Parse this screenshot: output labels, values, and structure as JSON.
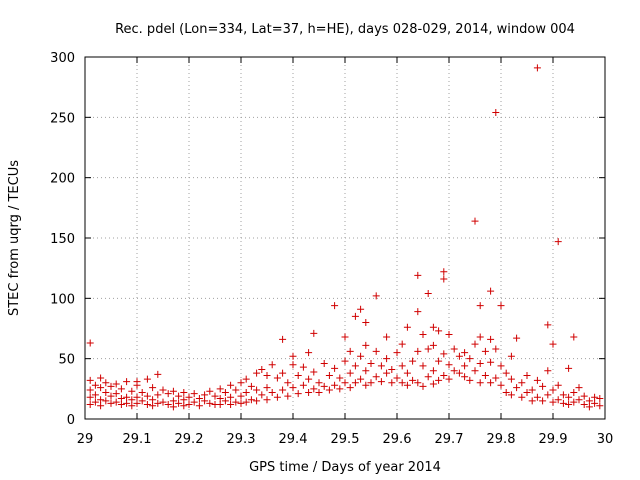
{
  "chart_data": {
    "type": "scatter",
    "title": "Rec. pdel (Lon=334, Lat=37, h=HE), days 028-029, 2014, window 004",
    "xlabel": "GPS time / Days of year 2014",
    "ylabel": "STEC from uqrg / TECUs",
    "xlim": [
      29,
      30
    ],
    "ylim": [
      0,
      300
    ],
    "xticks": [
      "29",
      "29.1",
      "29.2",
      "29.3",
      "29.4",
      "29.5",
      "29.6",
      "29.7",
      "29.8",
      "29.9",
      "30"
    ],
    "yticks": [
      "0",
      "50",
      "100",
      "150",
      "200",
      "250",
      "300"
    ],
    "grid": true,
    "marker": "+",
    "color": "#d00000",
    "series": [
      {
        "name": "STEC",
        "points": [
          [
            29.01,
            63
          ],
          [
            29.01,
            32
          ],
          [
            29.01,
            24
          ],
          [
            29.01,
            18
          ],
          [
            29.01,
            12
          ],
          [
            29.02,
            28
          ],
          [
            29.02,
            20
          ],
          [
            29.02,
            14
          ],
          [
            29.03,
            34
          ],
          [
            29.03,
            26
          ],
          [
            29.03,
            16
          ],
          [
            29.03,
            11
          ],
          [
            29.04,
            30
          ],
          [
            29.04,
            22
          ],
          [
            29.04,
            15
          ],
          [
            29.05,
            27
          ],
          [
            29.05,
            19
          ],
          [
            29.05,
            13
          ],
          [
            29.06,
            29
          ],
          [
            29.06,
            21
          ],
          [
            29.06,
            14
          ],
          [
            29.07,
            25
          ],
          [
            29.07,
            17
          ],
          [
            29.07,
            12
          ],
          [
            29.08,
            31
          ],
          [
            29.08,
            18
          ],
          [
            29.08,
            13
          ],
          [
            29.09,
            23
          ],
          [
            29.09,
            16
          ],
          [
            29.09,
            11
          ],
          [
            29.1,
            31
          ],
          [
            29.1,
            28
          ],
          [
            29.1,
            18
          ],
          [
            29.1,
            13
          ],
          [
            29.11,
            22
          ],
          [
            29.11,
            15
          ],
          [
            29.12,
            33
          ],
          [
            29.12,
            19
          ],
          [
            29.12,
            12
          ],
          [
            29.13,
            26
          ],
          [
            29.13,
            16
          ],
          [
            29.13,
            11
          ],
          [
            29.14,
            37
          ],
          [
            29.14,
            20
          ],
          [
            29.14,
            13
          ],
          [
            29.15,
            24
          ],
          [
            29.15,
            14
          ],
          [
            29.16,
            21
          ],
          [
            29.16,
            12
          ],
          [
            29.17,
            23
          ],
          [
            29.17,
            15
          ],
          [
            29.17,
            10
          ],
          [
            29.18,
            19
          ],
          [
            29.18,
            13
          ],
          [
            29.19,
            22
          ],
          [
            29.19,
            16
          ],
          [
            29.19,
            11
          ],
          [
            29.2,
            18
          ],
          [
            29.2,
            12
          ],
          [
            29.21,
            21
          ],
          [
            29.21,
            14
          ],
          [
            29.22,
            17
          ],
          [
            29.22,
            11
          ],
          [
            29.23,
            20
          ],
          [
            29.23,
            15
          ],
          [
            29.24,
            23
          ],
          [
            29.24,
            13
          ],
          [
            29.25,
            19
          ],
          [
            29.25,
            12
          ],
          [
            29.26,
            25
          ],
          [
            29.26,
            17
          ],
          [
            29.26,
            12
          ],
          [
            29.27,
            22
          ],
          [
            29.27,
            15
          ],
          [
            29.28,
            28
          ],
          [
            29.28,
            18
          ],
          [
            29.28,
            12
          ],
          [
            29.29,
            24
          ],
          [
            29.29,
            14
          ],
          [
            29.3,
            30
          ],
          [
            29.3,
            19
          ],
          [
            29.3,
            13
          ],
          [
            29.31,
            33
          ],
          [
            29.31,
            22
          ],
          [
            29.31,
            14
          ],
          [
            29.32,
            27
          ],
          [
            29.32,
            16
          ],
          [
            29.33,
            38
          ],
          [
            29.33,
            24
          ],
          [
            29.33,
            15
          ],
          [
            29.34,
            41
          ],
          [
            29.34,
            20
          ],
          [
            29.35,
            36
          ],
          [
            29.35,
            26
          ],
          [
            29.35,
            16
          ],
          [
            29.36,
            45
          ],
          [
            29.36,
            22
          ],
          [
            29.37,
            34
          ],
          [
            29.37,
            18
          ],
          [
            29.38,
            66
          ],
          [
            29.38,
            38
          ],
          [
            29.38,
            24
          ],
          [
            29.39,
            30
          ],
          [
            29.39,
            19
          ],
          [
            29.4,
            52
          ],
          [
            29.4,
            45
          ],
          [
            29.4,
            26
          ],
          [
            29.41,
            36
          ],
          [
            29.41,
            21
          ],
          [
            29.42,
            43
          ],
          [
            29.42,
            28
          ],
          [
            29.43,
            55
          ],
          [
            29.43,
            33
          ],
          [
            29.43,
            22
          ],
          [
            29.44,
            71
          ],
          [
            29.44,
            39
          ],
          [
            29.44,
            25
          ],
          [
            29.45,
            30
          ],
          [
            29.45,
            22
          ],
          [
            29.46,
            46
          ],
          [
            29.46,
            27
          ],
          [
            29.47,
            36
          ],
          [
            29.47,
            24
          ],
          [
            29.48,
            94
          ],
          [
            29.48,
            42
          ],
          [
            29.48,
            28
          ],
          [
            29.49,
            34
          ],
          [
            29.49,
            25
          ],
          [
            29.5,
            68
          ],
          [
            29.5,
            48
          ],
          [
            29.5,
            30
          ],
          [
            29.51,
            56
          ],
          [
            29.51,
            38
          ],
          [
            29.51,
            26
          ],
          [
            29.52,
            85
          ],
          [
            29.52,
            44
          ],
          [
            29.52,
            30
          ],
          [
            29.53,
            91
          ],
          [
            29.53,
            52
          ],
          [
            29.53,
            33
          ],
          [
            29.54,
            80
          ],
          [
            29.54,
            61
          ],
          [
            29.54,
            40
          ],
          [
            29.54,
            28
          ],
          [
            29.55,
            46
          ],
          [
            29.55,
            30
          ],
          [
            29.56,
            102
          ],
          [
            29.56,
            56
          ],
          [
            29.56,
            35
          ],
          [
            29.57,
            44
          ],
          [
            29.57,
            31
          ],
          [
            29.58,
            68
          ],
          [
            29.58,
            50
          ],
          [
            29.58,
            38
          ],
          [
            29.59,
            41
          ],
          [
            29.59,
            30
          ],
          [
            29.6,
            55
          ],
          [
            29.6,
            34
          ],
          [
            29.61,
            62
          ],
          [
            29.61,
            44
          ],
          [
            29.61,
            30
          ],
          [
            29.62,
            76
          ],
          [
            29.62,
            38
          ],
          [
            29.62,
            28
          ],
          [
            29.63,
            48
          ],
          [
            29.63,
            32
          ],
          [
            29.64,
            119
          ],
          [
            29.64,
            89
          ],
          [
            29.64,
            56
          ],
          [
            29.64,
            30
          ],
          [
            29.65,
            70
          ],
          [
            29.65,
            44
          ],
          [
            29.65,
            27
          ],
          [
            29.66,
            104
          ],
          [
            29.66,
            58
          ],
          [
            29.66,
            35
          ],
          [
            29.67,
            76
          ],
          [
            29.67,
            61
          ],
          [
            29.67,
            40
          ],
          [
            29.67,
            29
          ],
          [
            29.68,
            73
          ],
          [
            29.68,
            48
          ],
          [
            29.68,
            32
          ],
          [
            29.69,
            122
          ],
          [
            29.69,
            116
          ],
          [
            29.69,
            54
          ],
          [
            29.69,
            36
          ],
          [
            29.7,
            70
          ],
          [
            29.7,
            45
          ],
          [
            29.7,
            33
          ],
          [
            29.71,
            58
          ],
          [
            29.71,
            40
          ],
          [
            29.72,
            52
          ],
          [
            29.72,
            38
          ],
          [
            29.73,
            55
          ],
          [
            29.73,
            44
          ],
          [
            29.73,
            35
          ],
          [
            29.74,
            50
          ],
          [
            29.74,
            32
          ],
          [
            29.75,
            164
          ],
          [
            29.75,
            62
          ],
          [
            29.75,
            40
          ],
          [
            29.76,
            94
          ],
          [
            29.76,
            68
          ],
          [
            29.76,
            46
          ],
          [
            29.76,
            30
          ],
          [
            29.77,
            56
          ],
          [
            29.77,
            36
          ],
          [
            29.78,
            106
          ],
          [
            29.78,
            66
          ],
          [
            29.78,
            47
          ],
          [
            29.78,
            30
          ],
          [
            29.79,
            254
          ],
          [
            29.79,
            58
          ],
          [
            29.79,
            34
          ],
          [
            29.8,
            94
          ],
          [
            29.8,
            44
          ],
          [
            29.8,
            28
          ],
          [
            29.81,
            38
          ],
          [
            29.81,
            22
          ],
          [
            29.82,
            52
          ],
          [
            29.82,
            33
          ],
          [
            29.82,
            20
          ],
          [
            29.83,
            67
          ],
          [
            29.83,
            26
          ],
          [
            29.84,
            30
          ],
          [
            29.84,
            18
          ],
          [
            29.85,
            36
          ],
          [
            29.85,
            22
          ],
          [
            29.86,
            24
          ],
          [
            29.86,
            15
          ],
          [
            29.87,
            291
          ],
          [
            29.87,
            32
          ],
          [
            29.87,
            18
          ],
          [
            29.88,
            27
          ],
          [
            29.88,
            15
          ],
          [
            29.89,
            78
          ],
          [
            29.89,
            40
          ],
          [
            29.89,
            20
          ],
          [
            29.9,
            62
          ],
          [
            29.9,
            24
          ],
          [
            29.9,
            14
          ],
          [
            29.91,
            147
          ],
          [
            29.91,
            28
          ],
          [
            29.91,
            16
          ],
          [
            29.92,
            20
          ],
          [
            29.92,
            13
          ],
          [
            29.93,
            42
          ],
          [
            29.93,
            18
          ],
          [
            29.93,
            12
          ],
          [
            29.94,
            68
          ],
          [
            29.94,
            22
          ],
          [
            29.94,
            14
          ],
          [
            29.95,
            26
          ],
          [
            29.95,
            16
          ],
          [
            29.96,
            19
          ],
          [
            29.96,
            12
          ],
          [
            29.97,
            15
          ],
          [
            29.97,
            10
          ],
          [
            29.98,
            18
          ],
          [
            29.98,
            13
          ],
          [
            29.99,
            17
          ],
          [
            29.99,
            11
          ]
        ]
      }
    ]
  }
}
